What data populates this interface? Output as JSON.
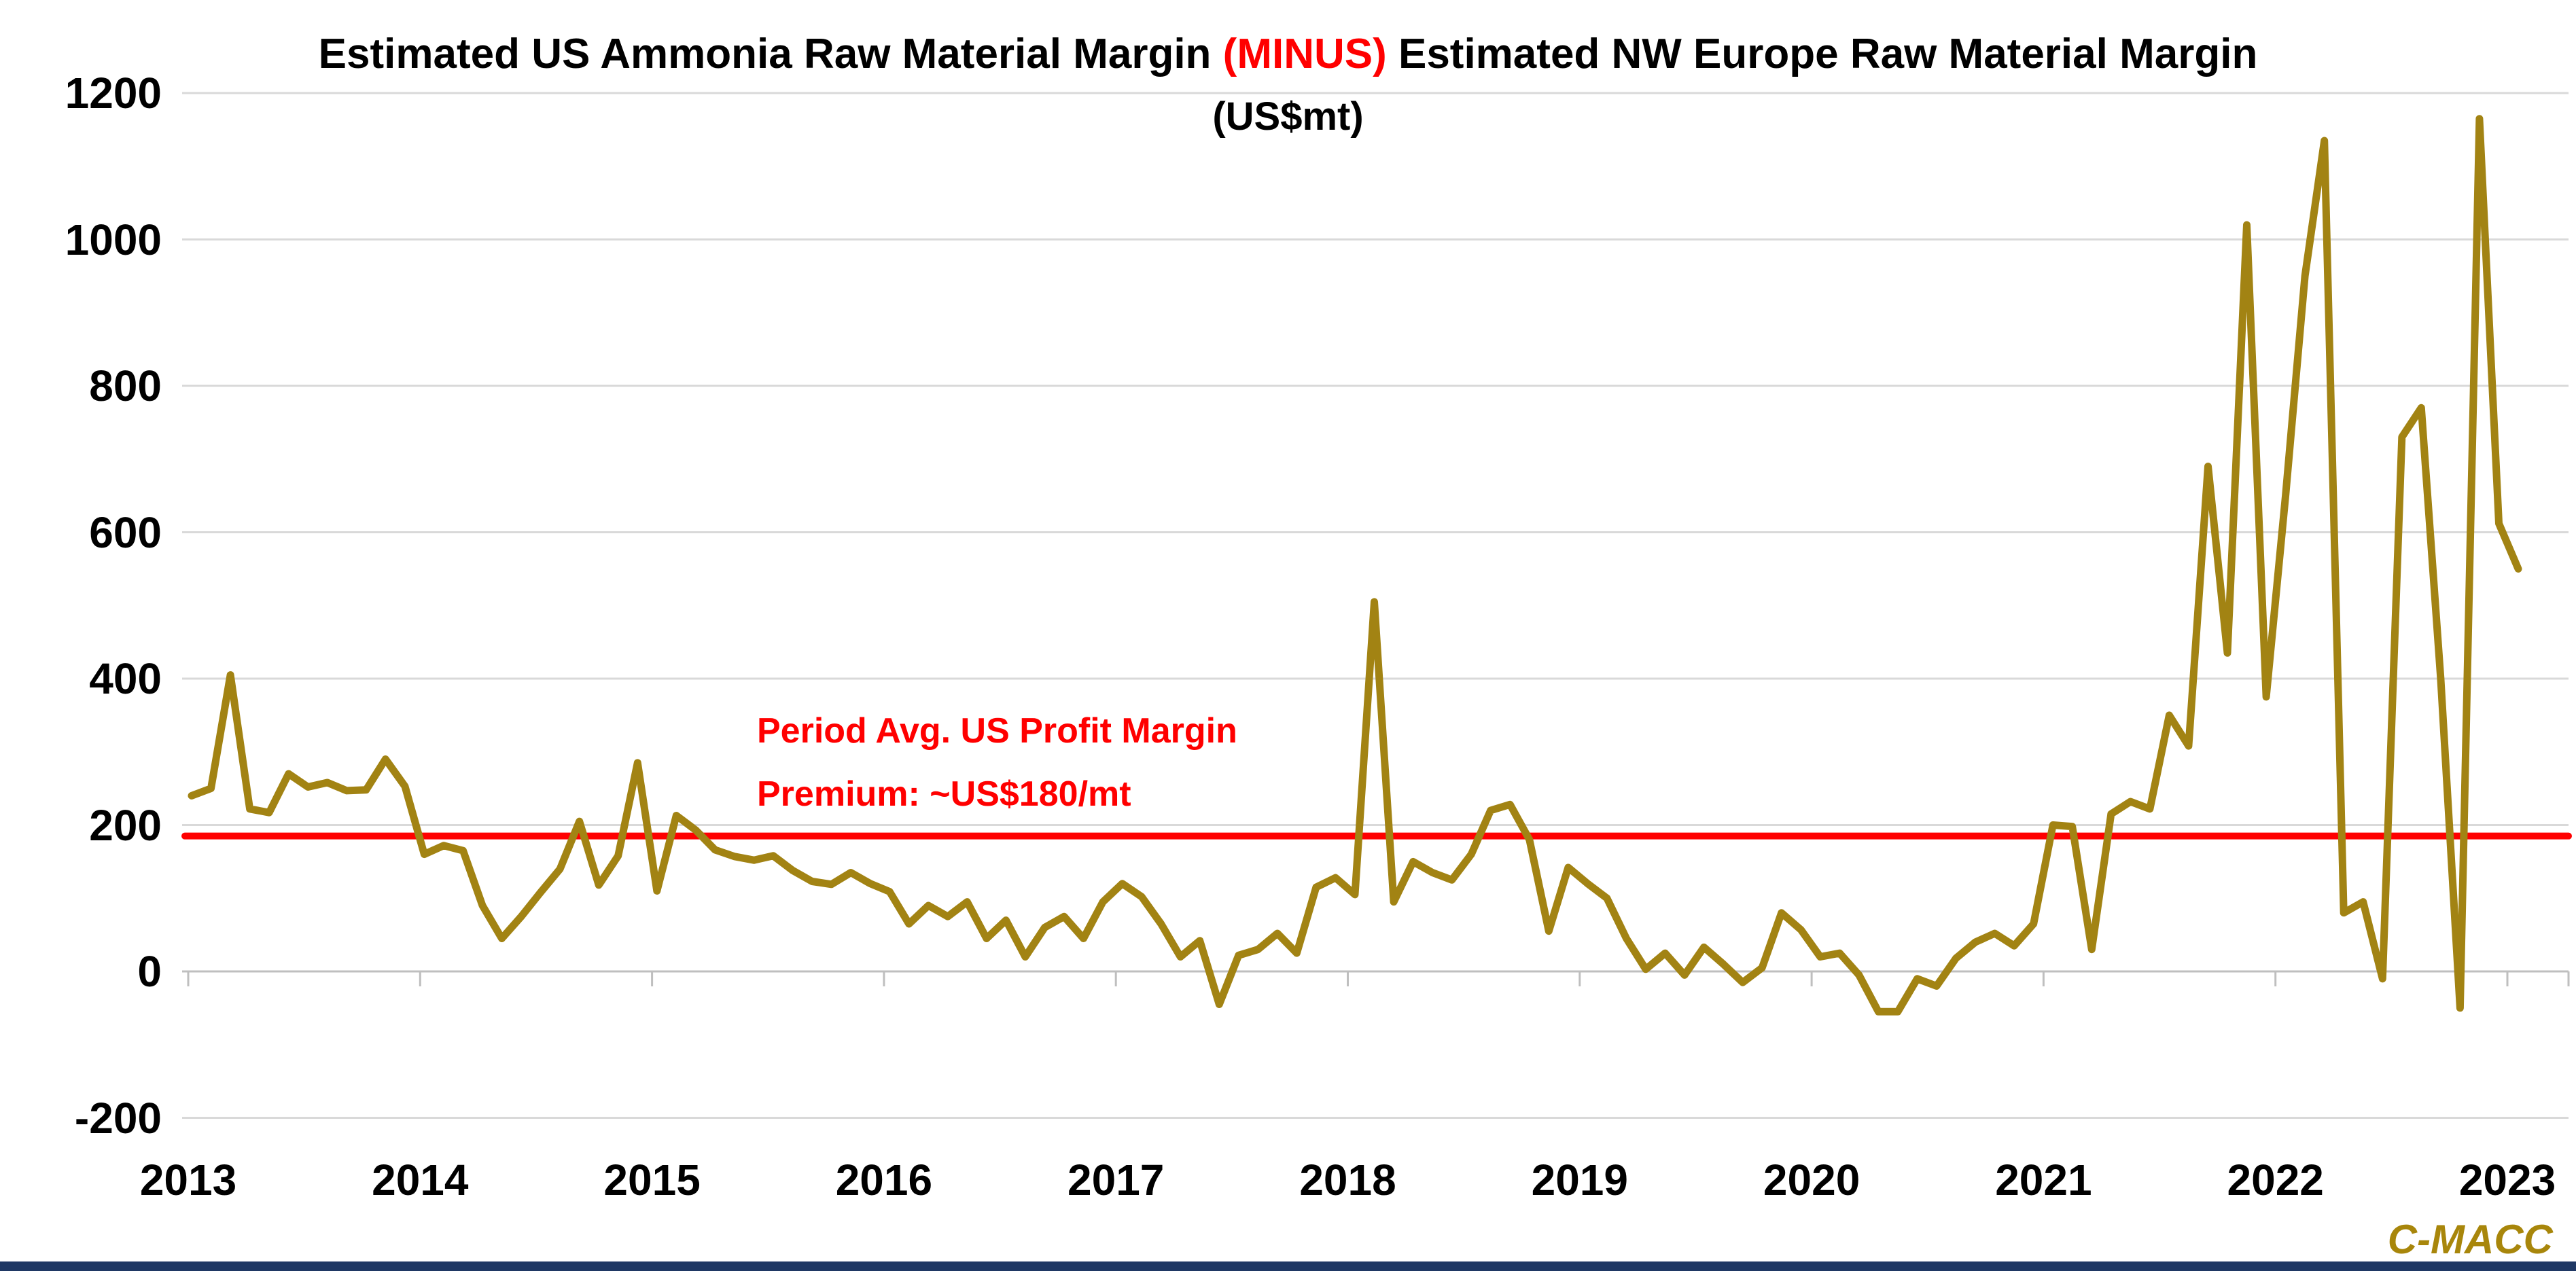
{
  "title_display": {
    "part1": "Estimated US Ammonia Raw Material Margin ",
    "minus": "(MINUS)",
    "part2": " Estimated NW Europe Raw Material Margin",
    "subtitle": "(US$mt)"
  },
  "annotation": {
    "line1": "Period Avg. US Profit Margin",
    "line2": "Premium: ~US$180/mt"
  },
  "watermark": "C-MACC",
  "colors": {
    "series_line": "#A28313",
    "reference_line": "#FF0000",
    "gridline": "#D9D9D9",
    "axis_line": "#BFBFBF",
    "title_highlight": "#FF0000",
    "watermark_gold": "#A8860B",
    "bottom_bar_navy": "#1F3864",
    "text": "#000000"
  },
  "chart_data": {
    "type": "line",
    "title": "Estimated US Ammonia Raw Material Margin (MINUS) Estimated NW Europe Raw Material Margin",
    "subtitle": "(US$mt)",
    "xlabel": "",
    "ylabel": "",
    "x_unit": "month",
    "x_range": [
      "2013-01",
      "2023-01"
    ],
    "x_tick_labels": [
      "2013",
      "2014",
      "2015",
      "2016",
      "2017",
      "2018",
      "2019",
      "2020",
      "2021",
      "2022",
      "2023"
    ],
    "y_ticks": [
      -200,
      0,
      200,
      400,
      600,
      800,
      1000,
      1200
    ],
    "ylim": [
      -200,
      1200
    ],
    "grid": true,
    "legend": false,
    "reference_line": {
      "value": 185,
      "approx_label_value": "~US$180/mt",
      "color": "#FF0000"
    },
    "series": [
      {
        "name": "Estimated US ammonia raw material margin minus NW Europe raw material margin (US$/mt)",
        "color": "#A28313",
        "values": [
          240,
          250,
          405,
          222,
          217,
          270,
          252,
          258,
          247,
          248,
          290,
          253,
          160,
          172,
          165,
          90,
          45,
          75,
          108,
          140,
          205,
          118,
          158,
          285,
          110,
          213,
          193,
          166,
          157,
          152,
          158,
          138,
          123,
          119,
          135,
          120,
          109,
          65,
          90,
          75,
          95,
          45,
          70,
          20,
          60,
          75,
          45,
          95,
          120,
          102,
          65,
          20,
          42,
          -45,
          22,
          30,
          52,
          25,
          115,
          128,
          105,
          505,
          95,
          150,
          135,
          125,
          160,
          220,
          228,
          180,
          55,
          142,
          120,
          100,
          45,
          3,
          25,
          -5,
          33,
          10,
          -15,
          5,
          80,
          57,
          20,
          25,
          -5,
          -55,
          -55,
          -10,
          -20,
          18,
          40,
          52,
          35,
          65,
          200,
          198,
          30,
          215,
          232,
          222,
          350,
          308,
          690,
          435,
          1020,
          375,
          650,
          950,
          1135,
          80,
          95,
          -10,
          730,
          770,
          400,
          -50,
          1165,
          612,
          550
        ]
      }
    ]
  }
}
